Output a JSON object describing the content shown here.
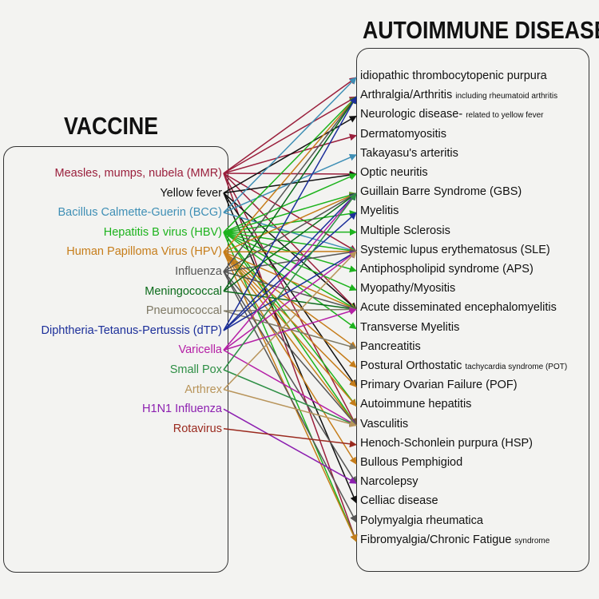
{
  "vaccine_title": "VACCINE",
  "disease_title": "AUTOIMMUNE DISEASE",
  "vaccines": [
    {
      "label": "Measles, mumps, nubela (MMR)",
      "color": "#9a1f3c"
    },
    {
      "label": "Yellow fever",
      "color": "#111111"
    },
    {
      "label": "Bacillus Calmette-Guerin (BCG)",
      "color": "#3f8fb5"
    },
    {
      "label": "Hepatitis B virus (HBV)",
      "color": "#1db31d"
    },
    {
      "label": "Human Papilloma Virus (HPV)",
      "color": "#c67d1a"
    },
    {
      "label": "Influenza",
      "color": "#555555"
    },
    {
      "label": "Meningococcal",
      "color": "#0b6b1b"
    },
    {
      "label": "Pneumococcal",
      "color": "#7d7864"
    },
    {
      "label": "Diphtheria-Tetanus-Pertussis (dTP)",
      "color": "#1c2f9a"
    },
    {
      "label": "Varicella",
      "color": "#b51fa6"
    },
    {
      "label": "Small Pox",
      "color": "#2e8f45"
    },
    {
      "label": "Arthrex",
      "color": "#b8945a"
    },
    {
      "label": "H1N1 Influenza",
      "color": "#8c1fb0"
    },
    {
      "label": "Rotavirus",
      "color": "#9a2a1f"
    }
  ],
  "diseases": [
    {
      "label": "idiopathic thrombocytopenic purpura",
      "note": ""
    },
    {
      "label": "Arthralgia/Arthritis ",
      "note": "including rheumatoid arthritis"
    },
    {
      "label": "Neurologic disease- ",
      "note": "related to yellow fever"
    },
    {
      "label": "Dermatomyositis",
      "note": ""
    },
    {
      "label": "Takayasu's arteritis",
      "note": ""
    },
    {
      "label": "Optic neuritis",
      "note": ""
    },
    {
      "label": "Guillain Barre Syndrome (GBS)",
      "note": ""
    },
    {
      "label": "Myelitis",
      "note": ""
    },
    {
      "label": "Multiple Sclerosis",
      "note": ""
    },
    {
      "label": "Systemic lupus erythematosus (SLE)",
      "note": ""
    },
    {
      "label": "Antiphospholipid syndrome (APS)",
      "note": ""
    },
    {
      "label": "Myopathy/Myositis",
      "note": ""
    },
    {
      "label": "Acute disseminated encephalomyelitis",
      "note": ""
    },
    {
      "label": "Transverse Myelitis",
      "note": ""
    },
    {
      "label": "Pancreatitis",
      "note": ""
    },
    {
      "label": "Postural Orthostatic ",
      "note": "tachycardia syndrome (POT)"
    },
    {
      "label": "Primary Ovarian Failure (POF)",
      "note": ""
    },
    {
      "label": "Autoimmune hepatitis",
      "note": ""
    },
    {
      "label": "Vasculitis",
      "note": ""
    },
    {
      "label": "Henoch-Schonlein purpura (HSP)",
      "note": ""
    },
    {
      "label": "Bullous Pemphigiod",
      "note": ""
    },
    {
      "label": "Narcolepsy",
      "note": ""
    },
    {
      "label": "Celliac disease",
      "note": ""
    },
    {
      "label": "Polymyalgia rheumatica",
      "note": ""
    },
    {
      "label": "Fibromyalgia/Chronic Fatigue ",
      "note": "syndrome"
    }
  ],
  "links": [
    [
      0,
      0
    ],
    [
      0,
      1
    ],
    [
      0,
      3
    ],
    [
      0,
      5
    ],
    [
      0,
      9
    ],
    [
      0,
      12
    ],
    [
      0,
      18
    ],
    [
      0,
      24
    ],
    [
      1,
      2
    ],
    [
      1,
      5
    ],
    [
      1,
      12
    ],
    [
      1,
      16
    ],
    [
      1,
      22
    ],
    [
      2,
      0
    ],
    [
      2,
      4
    ],
    [
      2,
      9
    ],
    [
      3,
      1
    ],
    [
      3,
      5
    ],
    [
      3,
      6
    ],
    [
      3,
      7
    ],
    [
      3,
      8
    ],
    [
      3,
      9
    ],
    [
      3,
      10
    ],
    [
      3,
      11
    ],
    [
      3,
      12
    ],
    [
      3,
      13
    ],
    [
      3,
      17
    ],
    [
      3,
      18
    ],
    [
      3,
      24
    ],
    [
      4,
      1
    ],
    [
      4,
      6
    ],
    [
      4,
      9
    ],
    [
      4,
      12
    ],
    [
      4,
      14
    ],
    [
      4,
      15
    ],
    [
      4,
      16
    ],
    [
      4,
      17
    ],
    [
      4,
      18
    ],
    [
      4,
      20
    ],
    [
      4,
      24
    ],
    [
      5,
      1
    ],
    [
      5,
      6
    ],
    [
      5,
      9
    ],
    [
      5,
      12
    ],
    [
      5,
      18
    ],
    [
      5,
      21
    ],
    [
      5,
      23
    ],
    [
      6,
      1
    ],
    [
      6,
      6
    ],
    [
      6,
      12
    ],
    [
      7,
      12
    ],
    [
      7,
      14
    ],
    [
      8,
      1
    ],
    [
      8,
      6
    ],
    [
      8,
      7
    ],
    [
      8,
      9
    ],
    [
      9,
      6
    ],
    [
      9,
      9
    ],
    [
      9,
      12
    ],
    [
      9,
      18
    ],
    [
      10,
      6
    ],
    [
      10,
      18
    ],
    [
      11,
      9
    ],
    [
      11,
      18
    ],
    [
      12,
      21
    ],
    [
      13,
      19
    ]
  ]
}
